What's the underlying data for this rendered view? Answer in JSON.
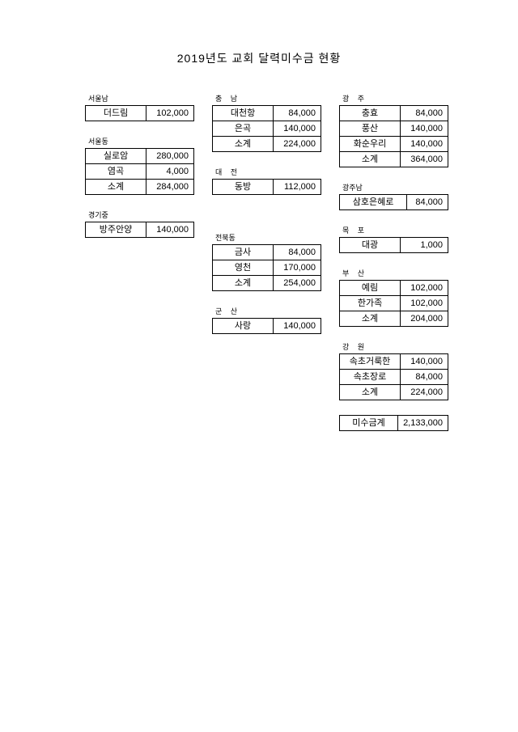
{
  "title": "2019년도 교회 달력미수금 현황",
  "columns": [
    {
      "groups": [
        {
          "label": "서울남",
          "labelClass": "tight",
          "rows": [
            {
              "name": "더드림",
              "value": "102,000"
            }
          ]
        },
        {
          "label": "서울동",
          "labelClass": "tight",
          "rows": [
            {
              "name": "실로암",
              "value": "280,000"
            },
            {
              "name": "염곡",
              "value": "4,000"
            },
            {
              "name": "소계",
              "value": "284,000"
            }
          ]
        },
        {
          "label": "경기중",
          "labelClass": "tight",
          "rows": [
            {
              "name": "방주안양",
              "value": "140,000"
            }
          ]
        }
      ]
    },
    {
      "groups": [
        {
          "label": "충 남",
          "rows": [
            {
              "name": "대천항",
              "value": "84,000"
            },
            {
              "name": "은곡",
              "value": "140,000"
            },
            {
              "name": "소계",
              "value": "224,000"
            }
          ]
        },
        {
          "label": "대 전",
          "rows": [
            {
              "name": "동방",
              "value": "112,000"
            }
          ],
          "spacerAfter": 28
        },
        {
          "label": "전북동",
          "labelClass": "tight",
          "rows": [
            {
              "name": "금사",
              "value": "84,000"
            },
            {
              "name": "영천",
              "value": "170,000"
            },
            {
              "name": "소계",
              "value": "254,000"
            }
          ]
        },
        {
          "label": "군 산",
          "rows": [
            {
              "name": "사랑",
              "value": "140,000"
            }
          ]
        }
      ]
    },
    {
      "groups": [
        {
          "label": "광   주",
          "rows": [
            {
              "name": "충효",
              "value": "84,000"
            },
            {
              "name": "풍산",
              "value": "140,000"
            },
            {
              "name": "화순우리",
              "value": "140,000"
            },
            {
              "name": "소계",
              "value": "364,000"
            }
          ]
        },
        {
          "label": "광주남",
          "labelClass": "tight",
          "wide": true,
          "rows": [
            {
              "name": "삼호은혜로",
              "value": "84,000"
            }
          ]
        },
        {
          "label": "목 포",
          "rows": [
            {
              "name": "대광",
              "value": "1,000"
            }
          ]
        },
        {
          "label": "부 산",
          "rows": [
            {
              "name": "예림",
              "value": "102,000"
            },
            {
              "name": "한가족",
              "value": "102,000"
            },
            {
              "name": "소계",
              "value": "204,000"
            }
          ]
        },
        {
          "label": "강 원",
          "rows": [
            {
              "name": "속초거룩한",
              "value": "140,000"
            },
            {
              "name": "속초장로",
              "value": "84,000"
            },
            {
              "name": "소계",
              "value": "224,000"
            }
          ]
        },
        {
          "label": "",
          "rows": [
            {
              "name": "미수금계",
              "value": "2,133,000"
            }
          ]
        }
      ]
    }
  ]
}
